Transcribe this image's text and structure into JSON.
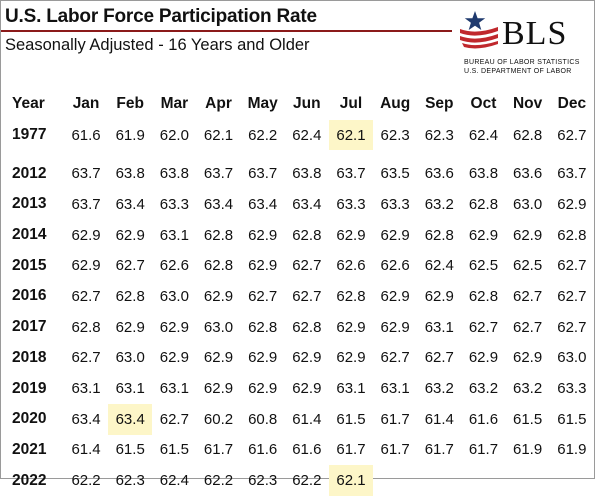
{
  "header": {
    "title": "U.S. Labor Force Participation Rate",
    "subtitle": "Seasonally Adjusted - 16 Years and Older"
  },
  "logo": {
    "name": "BLS",
    "line1": "BUREAU OF LABOR STATISTICS",
    "line2": "U.S. DEPARTMENT OF LABOR",
    "icon": "star-swoosh-icon",
    "colors": {
      "red": "#c0282d",
      "blue": "#1f3a6e"
    }
  },
  "table": {
    "columns": [
      "Year",
      "Jan",
      "Feb",
      "Mar",
      "Apr",
      "May",
      "Jun",
      "Jul",
      "Aug",
      "Sep",
      "Oct",
      "Nov",
      "Dec"
    ],
    "highlight_color": "#fdf6c8",
    "rows": [
      {
        "year": "1977",
        "values": [
          "61.6",
          "61.9",
          "62.0",
          "62.1",
          "62.2",
          "62.4",
          "62.1",
          "62.3",
          "62.3",
          "62.4",
          "62.8",
          "62.7"
        ]
      },
      {
        "year": "2012",
        "values": [
          "63.7",
          "63.8",
          "63.8",
          "63.7",
          "63.7",
          "63.8",
          "63.7",
          "63.5",
          "63.6",
          "63.8",
          "63.6",
          "63.7"
        ]
      },
      {
        "year": "2013",
        "values": [
          "63.7",
          "63.4",
          "63.3",
          "63.4",
          "63.4",
          "63.4",
          "63.3",
          "63.3",
          "63.2",
          "62.8",
          "63.0",
          "62.9"
        ]
      },
      {
        "year": "2014",
        "values": [
          "62.9",
          "62.9",
          "63.1",
          "62.8",
          "62.9",
          "62.8",
          "62.9",
          "62.9",
          "62.8",
          "62.9",
          "62.9",
          "62.8"
        ]
      },
      {
        "year": "2015",
        "values": [
          "62.9",
          "62.7",
          "62.6",
          "62.8",
          "62.9",
          "62.7",
          "62.6",
          "62.6",
          "62.4",
          "62.5",
          "62.5",
          "62.7"
        ]
      },
      {
        "year": "2016",
        "values": [
          "62.7",
          "62.8",
          "63.0",
          "62.9",
          "62.7",
          "62.7",
          "62.8",
          "62.9",
          "62.9",
          "62.8",
          "62.7",
          "62.7"
        ]
      },
      {
        "year": "2017",
        "values": [
          "62.8",
          "62.9",
          "62.9",
          "63.0",
          "62.8",
          "62.8",
          "62.9",
          "62.9",
          "63.1",
          "62.7",
          "62.7",
          "62.7"
        ]
      },
      {
        "year": "2018",
        "values": [
          "62.7",
          "63.0",
          "62.9",
          "62.9",
          "62.9",
          "62.9",
          "62.9",
          "62.7",
          "62.7",
          "62.9",
          "62.9",
          "63.0"
        ]
      },
      {
        "year": "2019",
        "values": [
          "63.1",
          "63.1",
          "63.1",
          "62.9",
          "62.9",
          "62.9",
          "63.1",
          "63.1",
          "63.2",
          "63.2",
          "63.2",
          "63.3"
        ]
      },
      {
        "year": "2020",
        "values": [
          "63.4",
          "63.4",
          "62.7",
          "60.2",
          "60.8",
          "61.4",
          "61.5",
          "61.7",
          "61.4",
          "61.6",
          "61.5",
          "61.5"
        ]
      },
      {
        "year": "2021",
        "values": [
          "61.4",
          "61.5",
          "61.5",
          "61.7",
          "61.6",
          "61.6",
          "61.7",
          "61.7",
          "61.7",
          "61.7",
          "61.9",
          "61.9"
        ]
      },
      {
        "year": "2022",
        "values": [
          "62.2",
          "62.3",
          "62.4",
          "62.2",
          "62.3",
          "62.2",
          "62.1",
          "",
          "",
          "",
          "",
          ""
        ]
      }
    ],
    "highlighted_cells": [
      {
        "year": "1977",
        "month": "Jul"
      },
      {
        "year": "2020",
        "month": "Feb"
      },
      {
        "year": "2022",
        "month": "Jul"
      }
    ]
  }
}
